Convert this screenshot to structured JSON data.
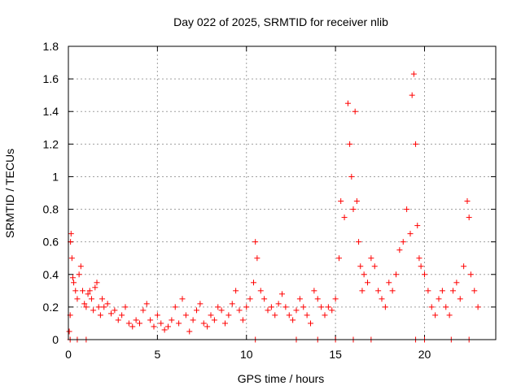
{
  "chart_data": {
    "type": "scatter",
    "title": "Day 022 of 2025, SRMTID for receiver nlib",
    "xlabel": "GPS time / hours",
    "ylabel": "SRMTID / TECUs",
    "xlim": [
      0,
      24
    ],
    "ylim": [
      0,
      1.8
    ],
    "x_ticks": [
      0,
      5,
      10,
      15,
      20
    ],
    "x_tick_labels": [
      "0",
      "5",
      "10",
      "15",
      "20"
    ],
    "y_ticks": [
      0,
      0.2,
      0.4,
      0.6,
      0.8,
      1,
      1.2,
      1.4,
      1.6,
      1.8
    ],
    "y_tick_labels": [
      "0",
      "0.2",
      "0.4",
      "0.6",
      "0.8",
      "1",
      "1.2",
      "1.4",
      "1.6",
      "1.8"
    ],
    "grid": true,
    "marker": "plus",
    "color": "#ff0000",
    "series": [
      {
        "name": "SRMTID",
        "points": [
          [
            0.05,
            0.05
          ],
          [
            0.1,
            0.15
          ],
          [
            0.12,
            0.6
          ],
          [
            0.15,
            0.65
          ],
          [
            0.2,
            0.5
          ],
          [
            0.25,
            0.38
          ],
          [
            0.3,
            0.35
          ],
          [
            0.4,
            0.3
          ],
          [
            0.5,
            0.25
          ],
          [
            0.6,
            0.4
          ],
          [
            0.7,
            0.45
          ],
          [
            0.8,
            0.3
          ],
          [
            0.9,
            0.22
          ],
          [
            1.0,
            0.2
          ],
          [
            1.1,
            0.28
          ],
          [
            1.2,
            0.3
          ],
          [
            1.3,
            0.25
          ],
          [
            1.4,
            0.18
          ],
          [
            1.5,
            0.32
          ],
          [
            1.6,
            0.35
          ],
          [
            1.7,
            0.2
          ],
          [
            1.8,
            0.15
          ],
          [
            1.9,
            0.25
          ],
          [
            2.0,
            0.2
          ],
          [
            2.2,
            0.22
          ],
          [
            2.4,
            0.16
          ],
          [
            2.6,
            0.18
          ],
          [
            2.8,
            0.12
          ],
          [
            3.0,
            0.15
          ],
          [
            3.2,
            0.2
          ],
          [
            3.4,
            0.1
          ],
          [
            3.6,
            0.08
          ],
          [
            3.8,
            0.12
          ],
          [
            4.0,
            0.1
          ],
          [
            4.2,
            0.18
          ],
          [
            4.4,
            0.22
          ],
          [
            4.6,
            0.12
          ],
          [
            4.8,
            0.08
          ],
          [
            5.0,
            0.15
          ],
          [
            5.2,
            0.1
          ],
          [
            5.4,
            0.06
          ],
          [
            5.6,
            0.08
          ],
          [
            5.8,
            0.12
          ],
          [
            6.0,
            0.2
          ],
          [
            6.2,
            0.1
          ],
          [
            6.4,
            0.25
          ],
          [
            6.6,
            0.15
          ],
          [
            6.8,
            0.05
          ],
          [
            7.0,
            0.12
          ],
          [
            7.2,
            0.18
          ],
          [
            7.4,
            0.22
          ],
          [
            7.6,
            0.1
          ],
          [
            7.8,
            0.08
          ],
          [
            8.0,
            0.15
          ],
          [
            8.2,
            0.12
          ],
          [
            8.4,
            0.2
          ],
          [
            8.6,
            0.18
          ],
          [
            8.8,
            0.1
          ],
          [
            9.0,
            0.15
          ],
          [
            9.2,
            0.22
          ],
          [
            9.4,
            0.3
          ],
          [
            9.6,
            0.18
          ],
          [
            9.8,
            0.12
          ],
          [
            10.0,
            0.2
          ],
          [
            10.2,
            0.25
          ],
          [
            10.4,
            0.35
          ],
          [
            10.5,
            0.6
          ],
          [
            10.6,
            0.5
          ],
          [
            10.8,
            0.3
          ],
          [
            11.0,
            0.25
          ],
          [
            11.2,
            0.18
          ],
          [
            11.4,
            0.2
          ],
          [
            11.6,
            0.15
          ],
          [
            11.8,
            0.22
          ],
          [
            12.0,
            0.28
          ],
          [
            12.2,
            0.2
          ],
          [
            12.4,
            0.15
          ],
          [
            12.6,
            0.12
          ],
          [
            12.8,
            0.18
          ],
          [
            13.0,
            0.25
          ],
          [
            13.2,
            0.2
          ],
          [
            13.4,
            0.15
          ],
          [
            13.6,
            0.1
          ],
          [
            13.8,
            0.3
          ],
          [
            14.0,
            0.25
          ],
          [
            14.2,
            0.2
          ],
          [
            14.4,
            0.15
          ],
          [
            14.6,
            0.2
          ],
          [
            14.8,
            0.18
          ],
          [
            15.0,
            0.25
          ],
          [
            15.2,
            0.5
          ],
          [
            15.3,
            0.85
          ],
          [
            15.5,
            0.75
          ],
          [
            15.7,
            1.45
          ],
          [
            15.8,
            1.2
          ],
          [
            15.9,
            1.0
          ],
          [
            16.0,
            0.8
          ],
          [
            16.1,
            1.4
          ],
          [
            16.2,
            0.85
          ],
          [
            16.3,
            0.6
          ],
          [
            16.4,
            0.45
          ],
          [
            16.5,
            0.3
          ],
          [
            16.6,
            0.4
          ],
          [
            16.8,
            0.35
          ],
          [
            17.0,
            0.5
          ],
          [
            17.2,
            0.45
          ],
          [
            17.4,
            0.3
          ],
          [
            17.6,
            0.25
          ],
          [
            17.8,
            0.2
          ],
          [
            18.0,
            0.35
          ],
          [
            18.2,
            0.3
          ],
          [
            18.4,
            0.4
          ],
          [
            18.6,
            0.55
          ],
          [
            18.8,
            0.6
          ],
          [
            19.0,
            0.8
          ],
          [
            19.2,
            0.65
          ],
          [
            19.3,
            1.5
          ],
          [
            19.4,
            1.63
          ],
          [
            19.5,
            1.2
          ],
          [
            19.6,
            0.7
          ],
          [
            19.7,
            0.5
          ],
          [
            19.8,
            0.45
          ],
          [
            20.0,
            0.4
          ],
          [
            20.2,
            0.3
          ],
          [
            20.4,
            0.2
          ],
          [
            20.6,
            0.15
          ],
          [
            20.8,
            0.25
          ],
          [
            21.0,
            0.3
          ],
          [
            21.2,
            0.2
          ],
          [
            21.4,
            0.15
          ],
          [
            21.6,
            0.3
          ],
          [
            21.8,
            0.35
          ],
          [
            22.0,
            0.25
          ],
          [
            22.2,
            0.45
          ],
          [
            22.4,
            0.85
          ],
          [
            22.5,
            0.75
          ],
          [
            22.6,
            0.4
          ],
          [
            22.8,
            0.3
          ],
          [
            23.0,
            0.2
          ],
          [
            0.1,
            0.0
          ],
          [
            0.5,
            0.0
          ],
          [
            1.0,
            0.0
          ],
          [
            10.5,
            0.0
          ],
          [
            12.8,
            0.0
          ],
          [
            14.0,
            0.0
          ],
          [
            15.0,
            0.0
          ],
          [
            16.0,
            0.0
          ],
          [
            17.0,
            0.0
          ],
          [
            19.5,
            0.0
          ],
          [
            20.0,
            0.0
          ],
          [
            21.5,
            0.0
          ],
          [
            22.5,
            0.0
          ]
        ]
      }
    ]
  }
}
